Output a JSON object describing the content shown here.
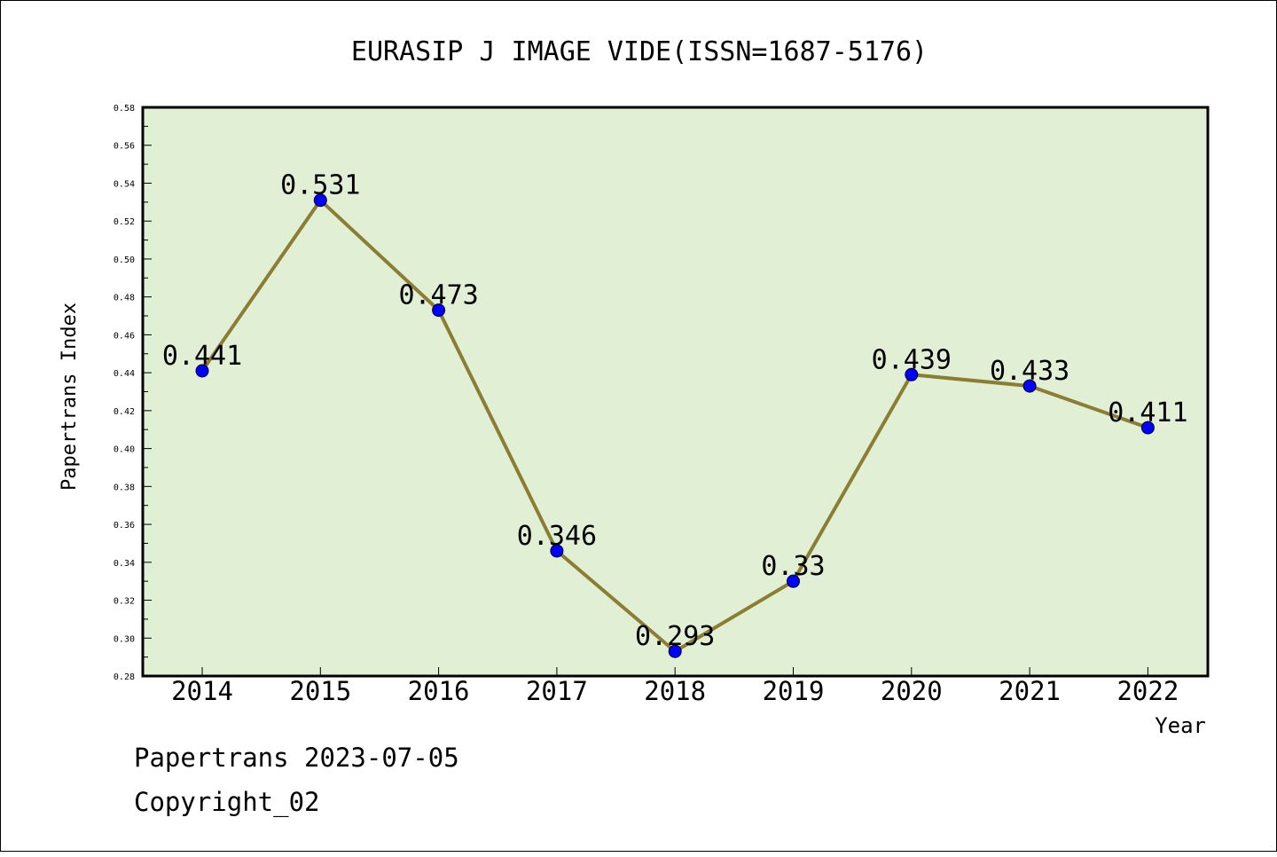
{
  "colors": {
    "plot_bg": "#e1efd5",
    "line": "#8b7d33",
    "marker": "#0000ff",
    "frame": "#000000"
  },
  "footer": {
    "date_line": "Papertrans 2023-07-05",
    "copyright": "Copyright_02"
  },
  "chart_data": {
    "type": "line",
    "title": "EURASIP J IMAGE VIDE(ISSN=1687-5176)",
    "xlabel": "Year",
    "ylabel": "Papertrans Index",
    "categories": [
      "2014",
      "2015",
      "2016",
      "2017",
      "2018",
      "2019",
      "2020",
      "2021",
      "2022"
    ],
    "series": [
      {
        "values": [
          0.441,
          0.531,
          0.473,
          0.346,
          0.293,
          0.33,
          0.439,
          0.433,
          0.411
        ],
        "labels": [
          "0.441",
          "0.531",
          "0.473",
          "0.346",
          "0.293",
          "0.33",
          "0.439",
          "0.433",
          "0.411"
        ]
      }
    ],
    "ylim": [
      0.28,
      0.58
    ],
    "yticks": [
      "0.28",
      "0.30",
      "0.32",
      "0.34",
      "0.36",
      "0.38",
      "0.40",
      "0.42",
      "0.44",
      "0.46",
      "0.48",
      "0.50",
      "0.52",
      "0.54",
      "0.56",
      "0.58"
    ],
    "grid": false,
    "marker": "circle"
  }
}
